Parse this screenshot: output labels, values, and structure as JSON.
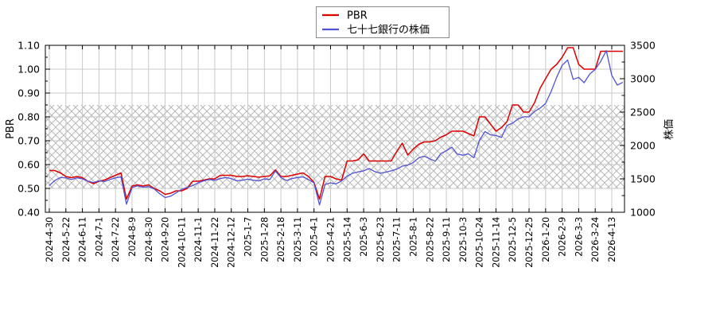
{
  "chart_data": {
    "type": "line",
    "title": "",
    "legend_position": "top-center",
    "grid": true,
    "y_left": {
      "label": "PBR",
      "min": 0.4,
      "max": 1.1,
      "tick_step": 0.1,
      "minor_step": 0.05,
      "tick_labels": [
        "0.40",
        "0.50",
        "0.60",
        "0.70",
        "0.80",
        "0.90",
        "1.00",
        "1.10"
      ]
    },
    "y_right": {
      "label": "株価",
      "min": 1000,
      "max": 3500,
      "tick_step": 500,
      "minor_step": 250,
      "tick_labels": [
        "1000",
        "1500",
        "2000",
        "2500",
        "3000",
        "3500"
      ]
    },
    "x_tick_labels": [
      "2024-4-30",
      "2024-5-22",
      "2024-6-11",
      "2024-7-1",
      "2024-7-22",
      "2024-8-9",
      "2024-8-30",
      "2024-9-20",
      "2024-10-11",
      "2024-11-1",
      "2024-11-22",
      "2024-12-12",
      "2025-1-7",
      "2025-1-28",
      "2025-2-18",
      "2025-3-11",
      "2025-4-1",
      "2025-4-21",
      "2025-5-14",
      "2025-6-3",
      "2025-6-23",
      "2025-7-11",
      "2025-8-1",
      "2025-8-22",
      "2025-9-11",
      "2025-10-3",
      "2025-10-24",
      "2025-11-14",
      "2025-12-5",
      "2025-12-25",
      "2026-1-20",
      "2026-2-9",
      "2026-3-3",
      "2026-3-24",
      "2026-4-13"
    ],
    "points_per_tick_interval": 3,
    "band": {
      "axis": "left",
      "from": 0.5,
      "to": 0.85,
      "style": "crosshatch"
    },
    "colors": {
      "grid": "#c9c9c9",
      "hatch": "#b8b8b8",
      "frame": "#000000",
      "legend_border": "#8a8a8a",
      "background": "#ffffff"
    },
    "series": [
      {
        "name": "PBR",
        "axis": "left",
        "color": "#dd0000",
        "values": [
          0.575,
          0.575,
          0.565,
          0.55,
          0.545,
          0.55,
          0.545,
          0.53,
          0.52,
          0.53,
          0.535,
          0.545,
          0.555,
          0.565,
          0.455,
          0.51,
          0.515,
          0.51,
          0.515,
          0.5,
          0.49,
          0.475,
          0.48,
          0.49,
          0.49,
          0.5,
          0.53,
          0.53,
          0.535,
          0.54,
          0.54,
          0.555,
          0.555,
          0.555,
          0.55,
          0.55,
          0.553,
          0.55,
          0.547,
          0.55,
          0.553,
          0.578,
          0.55,
          0.55,
          0.555,
          0.56,
          0.565,
          0.55,
          0.525,
          0.455,
          0.55,
          0.55,
          0.54,
          0.535,
          0.615,
          0.615,
          0.62,
          0.645,
          0.615,
          0.615,
          0.615,
          0.615,
          0.615,
          0.655,
          0.69,
          0.64,
          0.665,
          0.685,
          0.695,
          0.695,
          0.7,
          0.715,
          0.725,
          0.74,
          0.74,
          0.74,
          0.73,
          0.72,
          0.8,
          0.8,
          0.77,
          0.74,
          0.755,
          0.78,
          0.85,
          0.85,
          0.82,
          0.82,
          0.86,
          0.92,
          0.96,
          1.0,
          1.02,
          1.05,
          1.09,
          1.09,
          1.02,
          1.0,
          1.0,
          1.0,
          1.075,
          1.075,
          1.075,
          1.075,
          1.075
        ]
      },
      {
        "name": "七十七銀行の株価",
        "axis": "right",
        "color": "#5252d6",
        "values": [
          1400,
          1475,
          1520,
          1515,
          1490,
          1515,
          1500,
          1465,
          1445,
          1470,
          1460,
          1490,
          1515,
          1530,
          1120,
          1370,
          1395,
          1375,
          1385,
          1350,
          1280,
          1220,
          1240,
          1290,
          1345,
          1370,
          1400,
          1440,
          1470,
          1490,
          1480,
          1505,
          1520,
          1505,
          1470,
          1480,
          1495,
          1480,
          1470,
          1500,
          1490,
          1620,
          1520,
          1475,
          1505,
          1520,
          1530,
          1490,
          1440,
          1110,
          1415,
          1440,
          1425,
          1470,
          1540,
          1585,
          1605,
          1620,
          1655,
          1610,
          1585,
          1600,
          1620,
          1645,
          1690,
          1705,
          1745,
          1815,
          1840,
          1800,
          1765,
          1880,
          1920,
          1975,
          1870,
          1855,
          1875,
          1815,
          2075,
          2210,
          2160,
          2150,
          2120,
          2300,
          2335,
          2395,
          2430,
          2430,
          2510,
          2560,
          2630,
          2810,
          3020,
          3200,
          3280,
          2990,
          3020,
          2940,
          3070,
          3140,
          3260,
          3420,
          3050,
          2905,
          2945
        ]
      }
    ]
  }
}
